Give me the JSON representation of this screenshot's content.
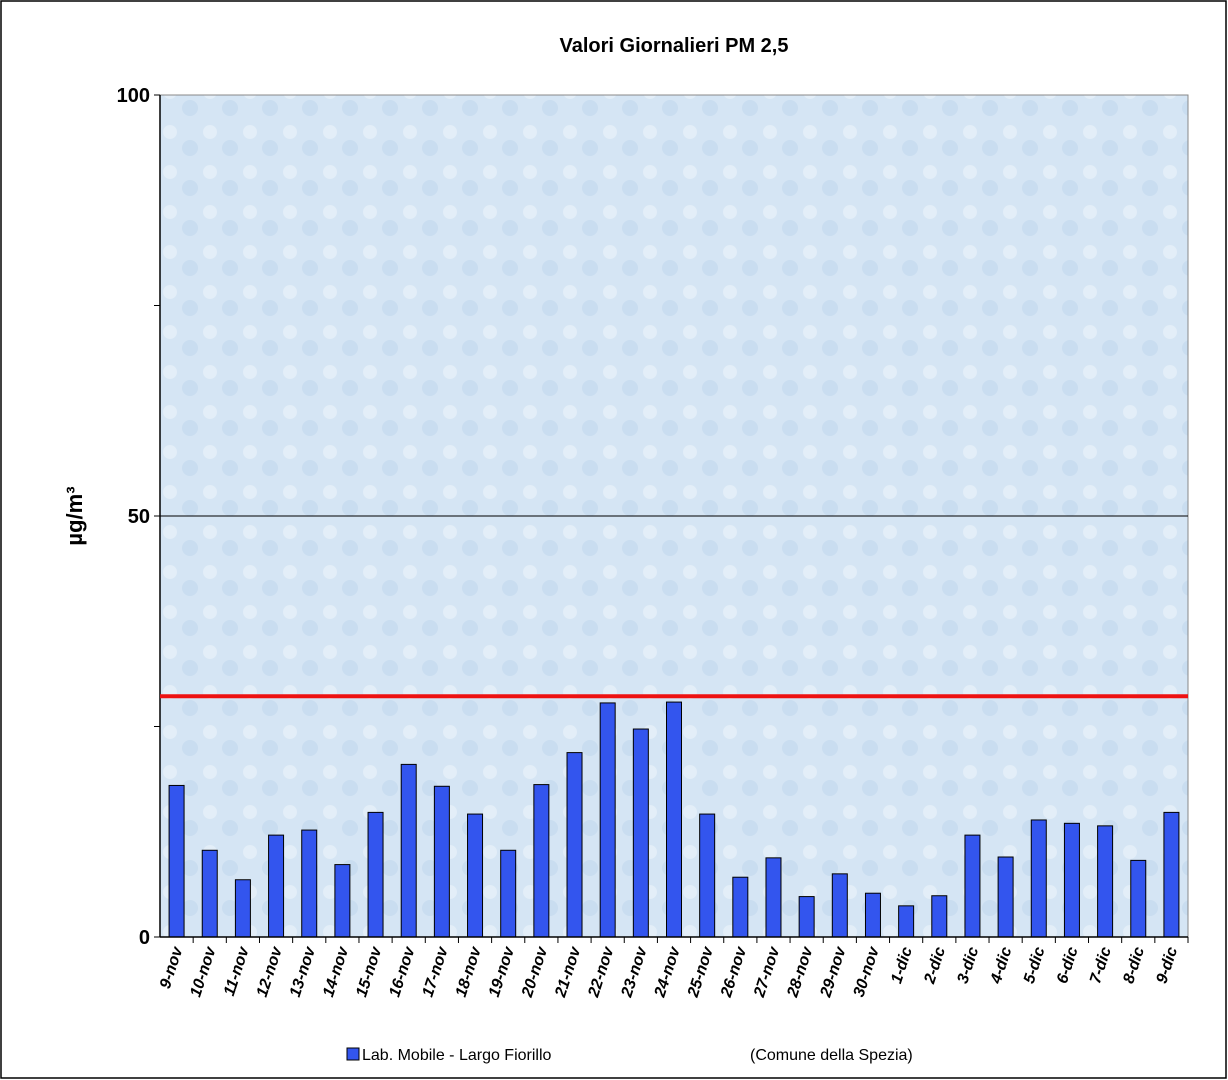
{
  "chart_data": {
    "type": "bar",
    "title": "Valori Giornalieri PM 2,5",
    "y_label": "µg/m³",
    "categories": [
      "9-nov",
      "10-nov",
      "11-nov",
      "12-nov",
      "13-nov",
      "14-nov",
      "15-nov",
      "16-nov",
      "17-nov",
      "18-nov",
      "19-nov",
      "20-nov",
      "21-nov",
      "22-nov",
      "23-nov",
      "24-nov",
      "25-nov",
      "26-nov",
      "27-nov",
      "28-nov",
      "29-nov",
      "30-nov",
      "1-dic",
      "2-dic",
      "3-dic",
      "4-dic",
      "5-dic",
      "6-dic",
      "7-dic",
      "8-dic",
      "9-dic"
    ],
    "series": [
      {
        "name": "Lab. Mobile - Largo Fiorillo",
        "color": "#3355ee",
        "values": [
          18,
          10.3,
          6.8,
          12.1,
          12.7,
          8.6,
          14.8,
          20.5,
          17.9,
          14.6,
          10.3,
          18.1,
          21.9,
          27.8,
          24.7,
          27.9,
          14.6,
          7.1,
          9.4,
          4.8,
          7.5,
          5.2,
          3.7,
          4.9,
          12.1,
          9.5,
          13.9,
          13.5,
          13.2,
          9.1,
          14.8
        ]
      }
    ],
    "annotation": "(Comune della Spezia)",
    "reference_line": {
      "value": 28.6,
      "color": "#ee1111"
    },
    "ylim": [
      0,
      100
    ],
    "yticks": [
      0,
      50,
      100
    ],
    "minor_yticks": [
      25,
      75
    ],
    "grid_yticks": [
      50
    ]
  }
}
